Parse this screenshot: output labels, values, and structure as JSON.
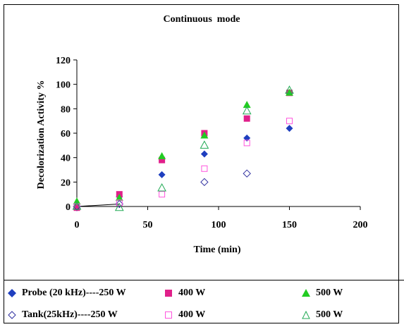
{
  "chart_data": {
    "type": "scatter",
    "title": "Continuous  mode",
    "xlabel": "Time (min)",
    "ylabel": "Decolorization Activity %",
    "xlim": [
      0,
      200
    ],
    "ylim": [
      0,
      120
    ],
    "x_ticks": [
      0,
      50,
      100,
      150,
      200
    ],
    "y_ticks": [
      0,
      20,
      40,
      60,
      80,
      100,
      120
    ],
    "grid": false,
    "legend_position": "bottom",
    "series": [
      {
        "name": "Probe (20 kHz)----250 W",
        "marker": "diamond-filled",
        "color": "#1f3fbf",
        "x": [
          0,
          30,
          60,
          90,
          120,
          150
        ],
        "y": [
          -1,
          8,
          26,
          43,
          56,
          64
        ]
      },
      {
        "name": "400 W",
        "marker": "square-filled",
        "color": "#e0208a",
        "x": [
          0,
          30,
          60,
          90,
          120,
          150
        ],
        "y": [
          -1,
          10,
          38,
          60,
          72,
          93
        ]
      },
      {
        "name": "500 W",
        "marker": "triangle-filled",
        "color": "#22cc22",
        "x": [
          0,
          30,
          60,
          90,
          120,
          150
        ],
        "y": [
          4,
          7,
          41,
          58,
          83,
          93
        ]
      },
      {
        "name": "Tank(25kHz)----250 W",
        "marker": "diamond-open",
        "color": "#3030a0",
        "x": [
          0,
          30,
          90,
          120
        ],
        "y": [
          0,
          2,
          20,
          27
        ]
      },
      {
        "name": "400 W",
        "marker": "square-open",
        "color": "#ff55dd",
        "x": [
          0,
          30,
          60,
          90,
          120,
          150
        ],
        "y": [
          0,
          3,
          10,
          31,
          52,
          70
        ]
      },
      {
        "name": "500 W",
        "marker": "triangle-open",
        "color": "#22aa55",
        "x": [
          0,
          30,
          60,
          90,
          120,
          150
        ],
        "y": [
          0,
          -1,
          15,
          50,
          78,
          95
        ]
      }
    ]
  }
}
